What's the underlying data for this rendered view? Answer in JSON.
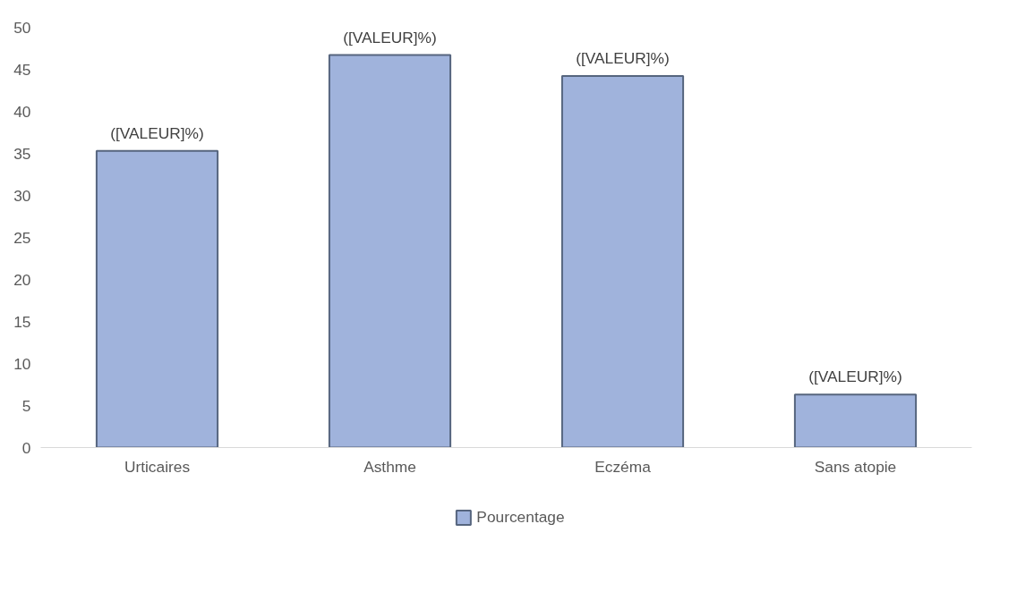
{
  "chart_data": {
    "type": "bar",
    "categories": [
      "Urticaires",
      "Asthme",
      "Eczéma",
      "Sans atopie"
    ],
    "series": [
      {
        "name": "Pourcentage",
        "color": "#a0b3dc",
        "values": [
          35.3,
          46.7,
          44.2,
          6.3
        ],
        "value_labels": [
          "([VALEUR]%)",
          "([VALEUR]%)",
          "([VALEUR]%)",
          "([VALEUR]%)"
        ]
      }
    ],
    "ylim": [
      0,
      50
    ],
    "yticks": [
      0,
      5,
      10,
      15,
      20,
      25,
      30,
      35,
      40,
      45,
      50
    ],
    "grid": false,
    "legend": "bottom"
  }
}
